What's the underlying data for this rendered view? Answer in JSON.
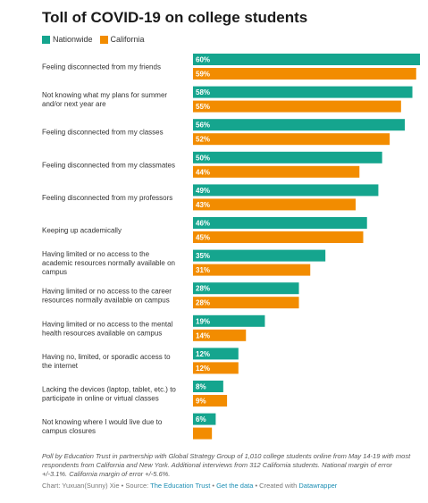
{
  "title": "Toll of COVID-19 on college students",
  "legend": [
    {
      "label": "Nationwide",
      "color": "#15a58e"
    },
    {
      "label": "California",
      "color": "#f28c00"
    }
  ],
  "chart_data": {
    "type": "bar",
    "orientation": "horizontal",
    "title": "Toll of COVID-19 on college students",
    "value_suffix": "%",
    "xlim": [
      0,
      60
    ],
    "categories": [
      [
        "Feeling disconnected from my friends"
      ],
      [
        "Not knowing what my plans for summer",
        "and/or next year are"
      ],
      [
        "Feeling disconnected from my classes"
      ],
      [
        "Feeling disconnected from my classmates"
      ],
      [
        "Feeling disconnected from my professors"
      ],
      [
        "Keeping up academically"
      ],
      [
        "Having limited or no access to the",
        "academic resources normally available on",
        "campus"
      ],
      [
        "Having limited or no access to the career",
        "resources normally available on campus"
      ],
      [
        "Having limited or no access to the mental",
        "health resources available on campus"
      ],
      [
        "Having no, limited, or sporadic access to",
        "the internet"
      ],
      [
        "Lacking the devices (laptop, tablet, etc.) to",
        "participate in online or virtual classes"
      ],
      [
        "Not knowing where I would live due to",
        "campus closures"
      ]
    ],
    "series": [
      {
        "name": "Nationwide",
        "color": "#15a58e",
        "values": [
          60,
          58,
          56,
          50,
          49,
          46,
          35,
          28,
          19,
          12,
          8,
          6
        ]
      },
      {
        "name": "California",
        "color": "#f28c00",
        "values": [
          59,
          55,
          52,
          44,
          43,
          45,
          31,
          28,
          14,
          12,
          9,
          5
        ]
      }
    ],
    "data_labels": {
      "Nationwide": [
        "60%",
        "58%",
        "56%",
        "50%",
        "49%",
        "46%",
        "35%",
        "28%",
        "19%",
        "12%",
        "8%",
        "6%"
      ],
      "California": [
        "59%",
        "55%",
        "52%",
        "44%",
        "43%",
        "45%",
        "31%",
        "28%",
        "14%",
        "12%",
        "9%",
        ""
      ]
    }
  },
  "footer": {
    "note": "Poll by Education Trust in partnership with Global Strategy Group of 1,010 college students online from May 14-19 with most respondents from California and New York. Additional interviews from 312 California students. National margin of error +/-3.1%. California margin of error +/-5.6%.",
    "credit_prefix": "Chart: Yuxuan(Sunny) Xie • Source: ",
    "source": "The Education Trust",
    "sep1": " • ",
    "get_data": "Get the data",
    "sep2": " • Created with ",
    "tool": "Datawrapper"
  }
}
